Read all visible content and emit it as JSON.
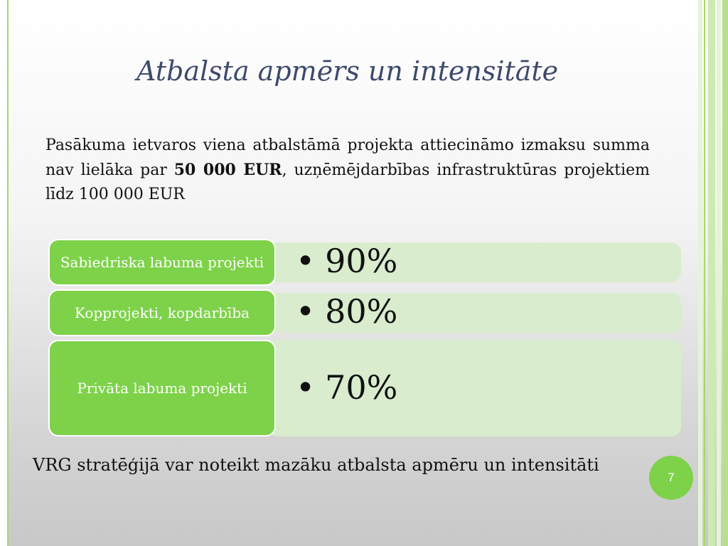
{
  "slide": {
    "title": "Atbalsta apmērs un intensitāte",
    "intro_part1": "Pasākuma ietvaros viena atbalstāmā projekta attiecināmo izmaksu summa nav lielāka par ",
    "intro_bold": "50 000 EUR",
    "intro_part2": ", uzņēmējdarbības infrastruktūras projektiem līdz 100 000 EUR",
    "rows": [
      {
        "label": "Sabiedriska labuma projekti",
        "value": "90%"
      },
      {
        "label": "Kopprojekti, kopdarbība",
        "value": "80%"
      },
      {
        "label": "Privāta labuma projekti",
        "value": "70%"
      }
    ],
    "bullet": "•",
    "footer_note": "VRG stratēģijā var noteikt mazāku atbalsta apmēru un intensitāti",
    "page_number": "7"
  },
  "colors": {
    "accent_green": "#7ed24a",
    "row_background": "#d9ecce",
    "title_color": "#3d4a6b"
  }
}
